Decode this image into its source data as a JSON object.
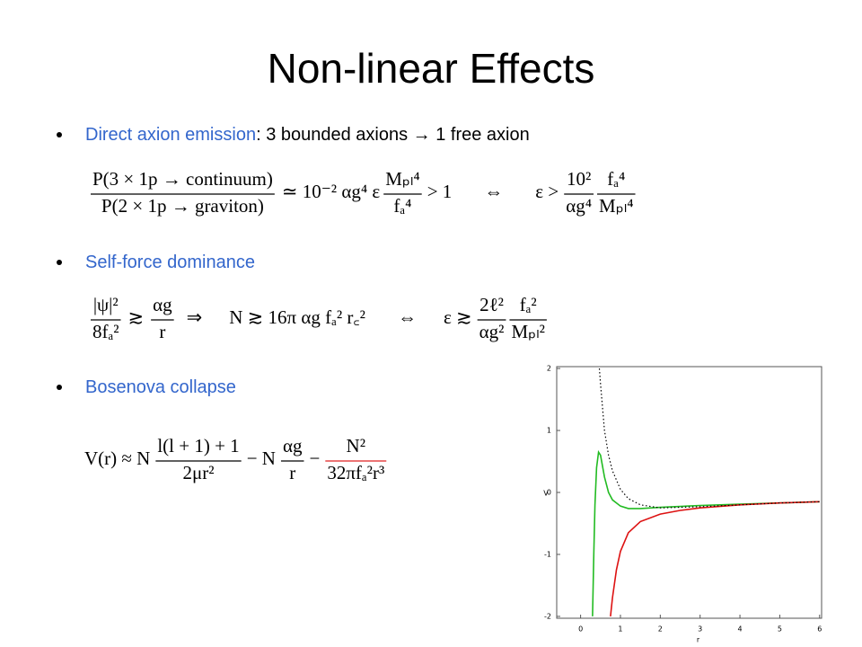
{
  "title": "Non-linear Effects",
  "bullets": [
    {
      "label": "Direct axion emission",
      "text": ": 3 bounded axions → 1 free axion",
      "color": "#3366cc"
    },
    {
      "label": "Self-force dominance",
      "color": "#3366cc"
    },
    {
      "label": "Bosenova collapse",
      "color": "#3366cc"
    }
  ],
  "equations": [
    [
      {
        "numerator": "P(3 × 1p → continuum)",
        "denominator": "P(2 × 1p → graviton)"
      },
      {
        "text": "≃ 10⁻² αg⁴ ε"
      },
      {
        "numerator": "Mₚₗ⁴",
        "denominator": "fₐ⁴"
      },
      {
        "text": "> 1"
      },
      {
        "text": "⇔"
      },
      {
        "text": "ε >"
      },
      {
        "numerator": "10²",
        "denominator": "αg⁴"
      },
      {
        "numerator": "fₐ⁴",
        "denominator": "Mₚₗ⁴"
      }
    ],
    [
      {
        "numerator": "|ψ|²",
        "denominator": "8fₐ²"
      },
      {
        "text": "≳"
      },
      {
        "numerator": "αg",
        "denominator": "r"
      },
      {
        "text": "⇒"
      },
      {
        "text": "N ≳ 16π αg fₐ² r꜀²"
      },
      {
        "text": "⇔"
      },
      {
        "text": "ε ≳"
      },
      {
        "numerator": "2ℓ²",
        "denominator": "αg²"
      },
      {
        "numerator": "fₐ²",
        "denominator": "Mₚₗ²"
      }
    ],
    [
      {
        "text": "V(r) ≈ N"
      },
      {
        "numerator": "l(l + 1) + 1",
        "denominator": "2μr²"
      },
      {
        "text": "− N"
      },
      {
        "numerator": "αg",
        "denominator": "r"
      },
      {
        "text": "−"
      },
      {
        "numerator": "N²",
        "denominator": "32πfₐ²r³",
        "color": "#e02020"
      }
    ]
  ],
  "chart": {
    "type": "line",
    "xlabel": "r",
    "ylabel": "V",
    "xlim": [
      -0.6,
      6.05
    ],
    "ylim": [
      -2.03,
      2.03
    ],
    "xticks": [
      0,
      1,
      2,
      3,
      4,
      5,
      6
    ],
    "yticks": [
      -2,
      -1,
      0,
      1,
      2
    ],
    "series": [
      {
        "color": "#22bb22",
        "style": "solid",
        "x": [
          0.3,
          0.33,
          0.36,
          0.4,
          0.45,
          0.5,
          0.6,
          0.7,
          0.8,
          1,
          1.2,
          1.5,
          2,
          3,
          4,
          5,
          6
        ],
        "values": [
          -2,
          -1,
          -0.2,
          0.4,
          0.65,
          0.6,
          0.25,
          0,
          -0.12,
          -0.22,
          -0.26,
          -0.26,
          -0.24,
          -0.21,
          -0.19,
          -0.17,
          -0.15
        ]
      },
      {
        "color": "#dd1111",
        "style": "solid",
        "x": [
          0.75,
          0.8,
          0.9,
          1,
          1.2,
          1.5,
          2,
          2.5,
          3,
          4,
          5,
          6
        ],
        "values": [
          -2,
          -1.7,
          -1.25,
          -0.95,
          -0.65,
          -0.47,
          -0.35,
          -0.29,
          -0.25,
          -0.2,
          -0.17,
          -0.15
        ]
      },
      {
        "color": "#000000",
        "style": "dotted",
        "x": [
          0.47,
          0.5,
          0.6,
          0.7,
          0.8,
          1,
          1.2,
          1.5,
          2,
          3,
          4,
          5,
          6
        ],
        "values": [
          2,
          1.75,
          1.0,
          0.6,
          0.35,
          0.05,
          -0.1,
          -0.2,
          -0.25,
          -0.23,
          -0.2,
          -0.17,
          -0.15
        ]
      }
    ]
  }
}
